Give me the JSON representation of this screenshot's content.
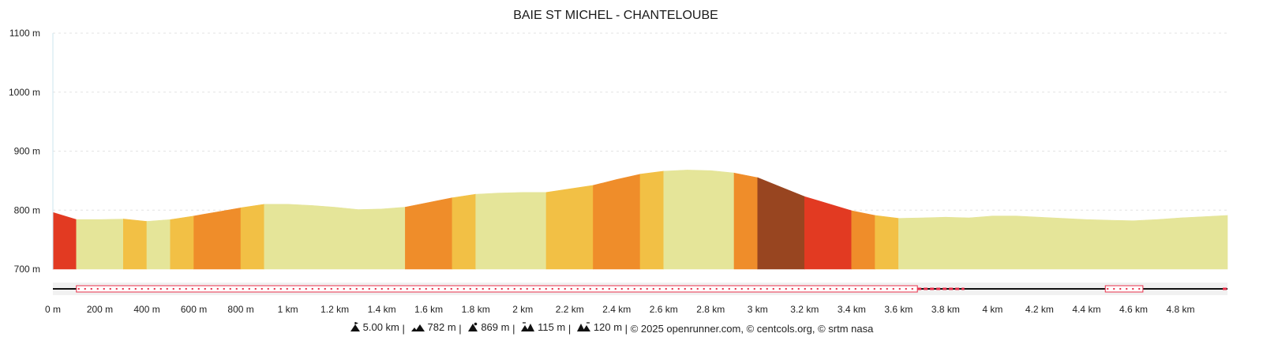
{
  "chart_data": {
    "type": "area",
    "title": "BAIE ST MICHEL - CHANTELOUBE",
    "xlabel": "",
    "ylabel": "",
    "x_unit": "m",
    "y_unit": "m",
    "xlim": [
      0,
      5000
    ],
    "ylim": [
      700,
      1100
    ],
    "y_ticks": [
      700,
      800,
      900,
      1000,
      1100
    ],
    "y_tick_labels": [
      "700 m",
      "800 m",
      "900 m",
      "1000 m",
      "1100 m"
    ],
    "x_ticks": [
      0,
      200,
      400,
      600,
      800,
      1000,
      1200,
      1400,
      1600,
      1800,
      2000,
      2200,
      2400,
      2600,
      2800,
      3000,
      3200,
      3400,
      3600,
      3800,
      4000,
      4200,
      4400,
      4600,
      4800
    ],
    "x_tick_labels": [
      "0 m",
      "200 m",
      "400 m",
      "600 m",
      "800 m",
      "1 km",
      "1.2 km",
      "1.4 km",
      "1.6 km",
      "1.8 km",
      "2 km",
      "2.2 km",
      "2.4 km",
      "2.6 km",
      "2.8 km",
      "3 km",
      "3.2 km",
      "3.4 km",
      "3.6 km",
      "3.8 km",
      "4 km",
      "4.2 km",
      "4.4 km",
      "4.6 km",
      "4.8 km"
    ],
    "grid": true,
    "profile": {
      "x": [
        0,
        100,
        200,
        300,
        400,
        500,
        600,
        700,
        800,
        900,
        1000,
        1100,
        1200,
        1300,
        1400,
        1500,
        1600,
        1700,
        1800,
        1900,
        2000,
        2100,
        2200,
        2300,
        2400,
        2500,
        2600,
        2700,
        2800,
        2900,
        3000,
        3100,
        3200,
        3300,
        3400,
        3500,
        3600,
        3700,
        3800,
        3900,
        4000,
        4100,
        4200,
        4300,
        4400,
        4500,
        4600,
        4700,
        4800,
        4900,
        5000
      ],
      "y": [
        796,
        784,
        784,
        785,
        781,
        784,
        790,
        797,
        804,
        810,
        810,
        808,
        805,
        801,
        802,
        805,
        813,
        821,
        827,
        829,
        830,
        830,
        836,
        842,
        852,
        861,
        866,
        868,
        867,
        863,
        855,
        839,
        823,
        811,
        799,
        791,
        786,
        787,
        788,
        787,
        790,
        790,
        788,
        786,
        784,
        783,
        782,
        784,
        787,
        789,
        791
      ]
    },
    "gradient_colors": {
      "descent": "#e5e599",
      "gentle": "#f2c045",
      "moderate": "#ef8d2a",
      "steep": "#e23a22",
      "very_steep": "#984520"
    },
    "segments": [
      {
        "from": 0,
        "to": 100,
        "class": "steep"
      },
      {
        "from": 100,
        "to": 300,
        "class": "descent"
      },
      {
        "from": 300,
        "to": 400,
        "class": "gentle"
      },
      {
        "from": 400,
        "to": 500,
        "class": "descent"
      },
      {
        "from": 500,
        "to": 600,
        "class": "gentle"
      },
      {
        "from": 600,
        "to": 800,
        "class": "moderate"
      },
      {
        "from": 800,
        "to": 900,
        "class": "gentle"
      },
      {
        "from": 900,
        "to": 1500,
        "class": "descent"
      },
      {
        "from": 1500,
        "to": 1700,
        "class": "moderate"
      },
      {
        "from": 1700,
        "to": 1800,
        "class": "gentle"
      },
      {
        "from": 1800,
        "to": 2100,
        "class": "descent"
      },
      {
        "from": 2100,
        "to": 2300,
        "class": "gentle"
      },
      {
        "from": 2300,
        "to": 2500,
        "class": "moderate"
      },
      {
        "from": 2500,
        "to": 2600,
        "class": "gentle"
      },
      {
        "from": 2600,
        "to": 2900,
        "class": "descent"
      },
      {
        "from": 2900,
        "to": 3000,
        "class": "moderate"
      },
      {
        "from": 3000,
        "to": 3200,
        "class": "very_steep"
      },
      {
        "from": 3200,
        "to": 3400,
        "class": "steep"
      },
      {
        "from": 3400,
        "to": 3500,
        "class": "moderate"
      },
      {
        "from": 3500,
        "to": 3600,
        "class": "gentle"
      },
      {
        "from": 3600,
        "to": 5000,
        "class": "descent"
      }
    ],
    "surface_track": {
      "base_color": "#111111",
      "highlight_color": "#e8304a",
      "dotted_ranges": [
        [
          100,
          3680
        ],
        [
          4480,
          4640
        ]
      ],
      "dashed_ranges": [
        [
          3680,
          3880
        ],
        [
          4980,
          5000
        ]
      ]
    }
  },
  "footer": {
    "distance": "5.00 km",
    "ascent": "782 m",
    "max_altitude": "869 m",
    "climb": "115 m",
    "descent": "120 m",
    "credits": "© 2025 openrunner.com, © centcols.org, © srtm nasa",
    "separator": "|"
  }
}
